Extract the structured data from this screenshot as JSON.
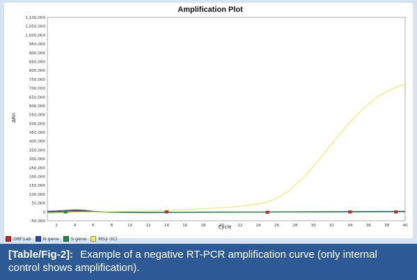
{
  "chart_data": {
    "type": "line",
    "title": "Amplification Plot",
    "xlabel": "Cycle",
    "ylabel": "ΔRn",
    "xlim": [
      1,
      40
    ],
    "ylim": [
      -50000,
      1100000
    ],
    "x_ticks": [
      "2",
      "4",
      "6",
      "8",
      "10",
      "12",
      "14",
      "16",
      "18",
      "20",
      "22",
      "24",
      "26",
      "28",
      "30",
      "32",
      "34",
      "36",
      "38",
      "40"
    ],
    "y_ticks": [
      "-50,000",
      "0",
      "50,000",
      "100,000",
      "150,000",
      "200,000",
      "250,000",
      "300,000",
      "350,000",
      "400,000",
      "450,000",
      "500,000",
      "550,000",
      "600,000",
      "650,000",
      "700,000",
      "750,000",
      "800,000",
      "850,000",
      "900,000",
      "950,000",
      "1,000,000",
      "1,050,000",
      "1,100,000"
    ],
    "grid": true,
    "legend_position": "bottom-left",
    "series": [
      {
        "name": "ORF1ab",
        "color": "#c0272d",
        "x": [
          1,
          2,
          3,
          4,
          5,
          6,
          8,
          10,
          12,
          14,
          16,
          18,
          20,
          22,
          24,
          26,
          28,
          30,
          32,
          34,
          36,
          38,
          40
        ],
        "values": [
          0,
          2000,
          5000,
          8000,
          6000,
          2000,
          -1000,
          -2000,
          -3000,
          -2000,
          -1500,
          -1000,
          -1000,
          -1000,
          -1000,
          -500,
          0,
          0,
          500,
          1000,
          1500,
          2000,
          2500
        ],
        "markers": [
          {
            "x": 14,
            "y": 0
          },
          {
            "x": 25,
            "y": -2000
          },
          {
            "x": 34,
            "y": 0
          },
          {
            "x": 39,
            "y": 0
          }
        ]
      },
      {
        "name": "N gene",
        "color": "#2b48a8",
        "x": [
          1,
          2,
          3,
          4,
          5,
          6,
          8,
          10,
          12,
          14,
          16,
          18,
          20,
          22,
          24,
          26,
          28,
          30,
          32,
          34,
          36,
          38,
          40
        ],
        "values": [
          4000,
          6000,
          9000,
          12000,
          10000,
          4000,
          0,
          -1000,
          -2000,
          -1500,
          -1000,
          -500,
          0,
          0,
          0,
          500,
          1000,
          1500,
          2000,
          2500,
          3000,
          3500,
          4000
        ],
        "markers": []
      },
      {
        "name": "S gene",
        "color": "#1f8a3a",
        "x": [
          1,
          2,
          3,
          4,
          5,
          6,
          8,
          10,
          12,
          14,
          16,
          18,
          20,
          22,
          24,
          26,
          28,
          30,
          32,
          34,
          36,
          38,
          40
        ],
        "values": [
          -2000,
          -1000,
          1000,
          3000,
          2000,
          0,
          -2000,
          -3000,
          -4000,
          -3000,
          -2500,
          -2000,
          -1500,
          -1000,
          -1000,
          -500,
          0,
          0,
          0,
          500,
          500,
          1000,
          1000
        ],
        "markers": [
          {
            "x": 3,
            "y": 0
          }
        ]
      },
      {
        "name": "MS2 (IC)",
        "color": "#f2e96a",
        "x": [
          1,
          2,
          3,
          4,
          6,
          8,
          10,
          12,
          14,
          16,
          18,
          20,
          22,
          24,
          25,
          26,
          27,
          28,
          29,
          30,
          31,
          32,
          33,
          34,
          35,
          36,
          37,
          38,
          39,
          40
        ],
        "values": [
          -8000,
          -6000,
          -4000,
          -2000,
          0,
          2000,
          4000,
          6000,
          9000,
          13000,
          18000,
          24000,
          32000,
          45000,
          58000,
          78000,
          108000,
          150000,
          200000,
          258000,
          320000,
          385000,
          448000,
          508000,
          562000,
          610000,
          650000,
          682000,
          705000,
          722000
        ],
        "markers": []
      }
    ]
  },
  "caption": {
    "label": "[Table/Fig-2]:",
    "text": "Example of a negative RT-PCR amplification curve (only internal control shows amplification)."
  }
}
